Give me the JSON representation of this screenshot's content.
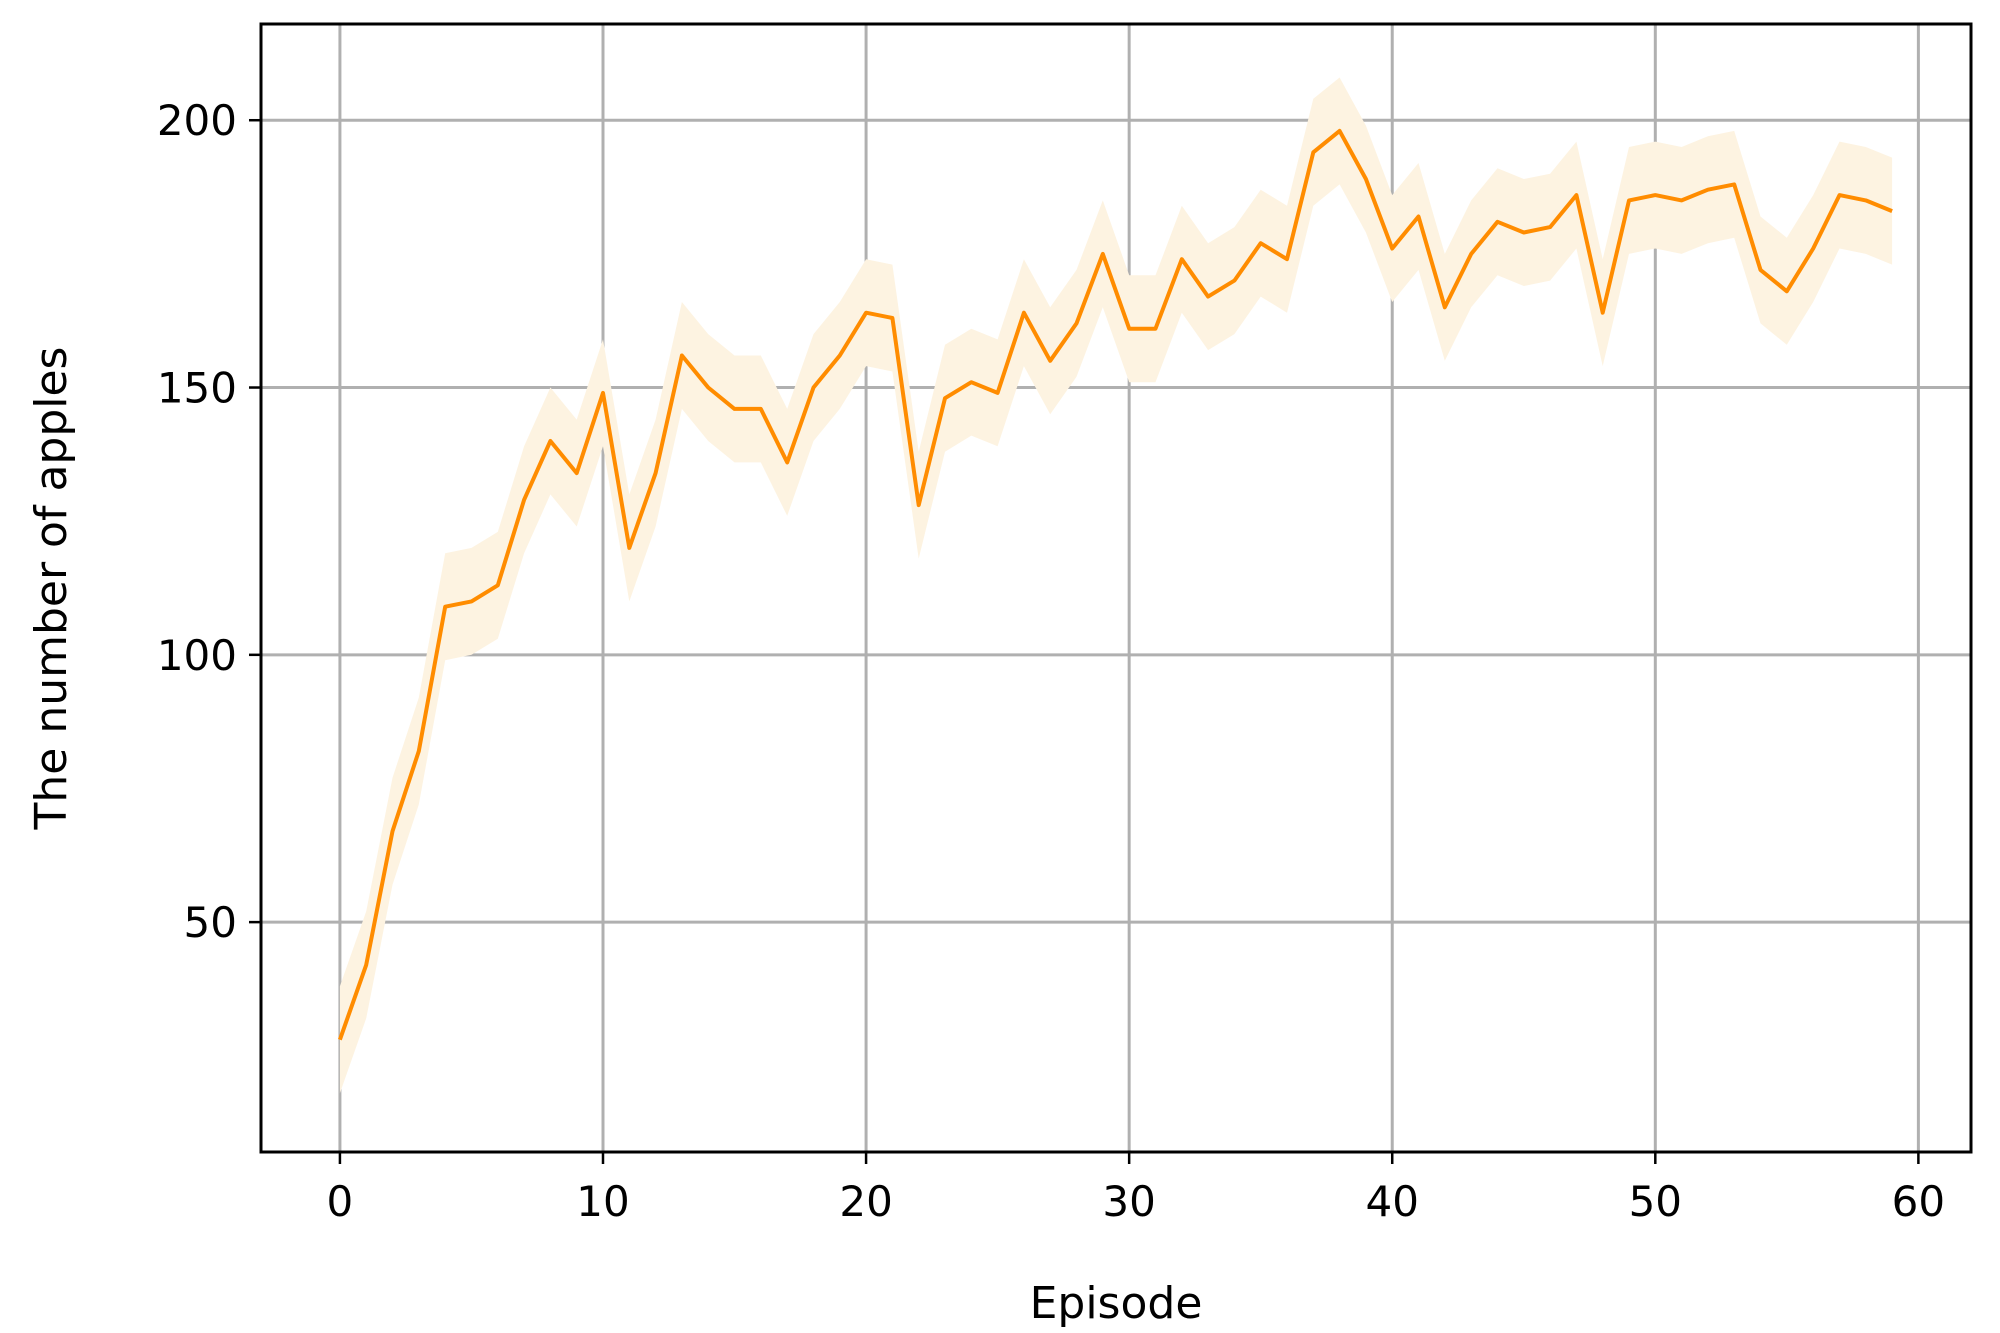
{
  "chart_data": {
    "type": "line",
    "title": "",
    "xlabel": "Episode",
    "ylabel": "The number of apples",
    "xlim": [
      -3,
      62
    ],
    "ylim": [
      7,
      218
    ],
    "xticks": [
      0,
      10,
      20,
      30,
      40,
      50,
      60
    ],
    "yticks": [
      50,
      100,
      150,
      200
    ],
    "xtick_labels": [
      "0",
      "10",
      "20",
      "30",
      "40",
      "50",
      "60"
    ],
    "ytick_labels": [
      "50",
      "100",
      "150",
      "200"
    ],
    "grid": true,
    "legend": "none",
    "series": [
      {
        "color": "#ff8c00",
        "band_color": "#fdf3e1",
        "x": [
          0,
          1,
          2,
          3,
          4,
          5,
          6,
          7,
          8,
          9,
          10,
          11,
          12,
          13,
          14,
          15,
          16,
          17,
          18,
          19,
          20,
          21,
          22,
          23,
          24,
          25,
          26,
          27,
          28,
          29,
          30,
          31,
          32,
          33,
          34,
          35,
          36,
          37,
          38,
          39,
          40,
          41,
          42,
          43,
          44,
          45,
          46,
          47,
          48,
          49,
          50,
          51,
          52,
          53,
          54,
          55,
          56,
          57,
          58,
          59
        ],
        "values": [
          28,
          42,
          67,
          82,
          109,
          110,
          113,
          129,
          140,
          134,
          149,
          120,
          134,
          156,
          150,
          146,
          146,
          136,
          150,
          156,
          164,
          163,
          128,
          148,
          151,
          149,
          164,
          155,
          162,
          175,
          161,
          161,
          174,
          167,
          170,
          177,
          174,
          194,
          198,
          189,
          176,
          182,
          165,
          175,
          181,
          179,
          180,
          186,
          164,
          185,
          186,
          185,
          187,
          188,
          172,
          168,
          176,
          186,
          185,
          183
        ],
        "lower": [
          18,
          32,
          57,
          72,
          99,
          100,
          103,
          119,
          130,
          124,
          139,
          110,
          124,
          146,
          140,
          136,
          136,
          126,
          140,
          146,
          154,
          153,
          118,
          138,
          141,
          139,
          154,
          145,
          152,
          165,
          151,
          151,
          164,
          157,
          160,
          167,
          164,
          184,
          188,
          179,
          166,
          172,
          155,
          165,
          171,
          169,
          170,
          176,
          154,
          175,
          176,
          175,
          177,
          178,
          162,
          158,
          166,
          176,
          175,
          173
        ],
        "upper": [
          38,
          52,
          77,
          92,
          119,
          120,
          123,
          139,
          150,
          144,
          159,
          130,
          144,
          166,
          160,
          156,
          156,
          146,
          160,
          166,
          174,
          173,
          138,
          158,
          161,
          159,
          174,
          165,
          172,
          185,
          171,
          171,
          184,
          177,
          180,
          187,
          184,
          204,
          208,
          199,
          186,
          192,
          175,
          185,
          191,
          189,
          190,
          196,
          174,
          195,
          196,
          195,
          197,
          198,
          182,
          178,
          186,
          196,
          195,
          193
        ]
      }
    ]
  }
}
